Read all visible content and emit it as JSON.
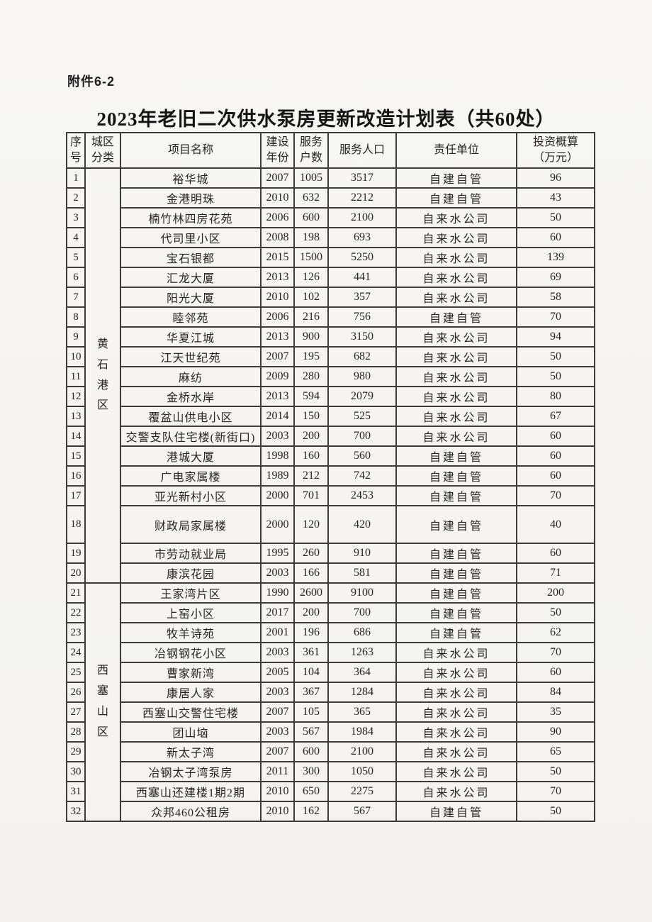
{
  "page": {
    "attachment_label": "附件6-2",
    "title": "2023年老旧二次供水泵房更新改造计划表（共60处）"
  },
  "table": {
    "columns": [
      {
        "key": "no",
        "label": "序\n号"
      },
      {
        "key": "district",
        "label": "城区\n分类"
      },
      {
        "key": "name",
        "label": "项目名称"
      },
      {
        "key": "year",
        "label": "建设\n年份"
      },
      {
        "key": "households",
        "label": "服务\n户数"
      },
      {
        "key": "population",
        "label": "服务人口"
      },
      {
        "key": "unit",
        "label": "责任单位"
      },
      {
        "key": "investment",
        "label": "投资概算\n（万元）"
      }
    ],
    "districts": [
      {
        "label": "黄石港区",
        "from": 1,
        "to": 20
      },
      {
        "label": "西塞山区",
        "from": 21,
        "to": 32
      }
    ],
    "rows": [
      {
        "no": 1,
        "name": "裕华城",
        "year": "2007",
        "households": "1005",
        "population": "3517",
        "unit": "自建自管",
        "investment": "96"
      },
      {
        "no": 2,
        "name": "金港明珠",
        "year": "2010",
        "households": "632",
        "population": "2212",
        "unit": "自建自管",
        "investment": "43"
      },
      {
        "no": 3,
        "name": "楠竹林四房花苑",
        "year": "2006",
        "households": "600",
        "population": "2100",
        "unit": "自来水公司",
        "investment": "50"
      },
      {
        "no": 4,
        "name": "代司里小区",
        "year": "2008",
        "households": "198",
        "population": "693",
        "unit": "自来水公司",
        "investment": "60"
      },
      {
        "no": 5,
        "name": "宝石银都",
        "year": "2015",
        "households": "1500",
        "population": "5250",
        "unit": "自来水公司",
        "investment": "139"
      },
      {
        "no": 6,
        "name": "汇龙大厦",
        "year": "2013",
        "households": "126",
        "population": "441",
        "unit": "自来水公司",
        "investment": "69"
      },
      {
        "no": 7,
        "name": "阳光大厦",
        "year": "2010",
        "households": "102",
        "population": "357",
        "unit": "自来水公司",
        "investment": "58"
      },
      {
        "no": 8,
        "name": "睦邻苑",
        "year": "2006",
        "households": "216",
        "population": "756",
        "unit": "自建自管",
        "investment": "70"
      },
      {
        "no": 9,
        "name": "华夏江城",
        "year": "2013",
        "households": "900",
        "population": "3150",
        "unit": "自来水公司",
        "investment": "94"
      },
      {
        "no": 10,
        "name": "江天世纪苑",
        "year": "2007",
        "households": "195",
        "population": "682",
        "unit": "自来水公司",
        "investment": "50"
      },
      {
        "no": 11,
        "name": "麻纺",
        "year": "2009",
        "households": "280",
        "population": "980",
        "unit": "自来水公司",
        "investment": "50"
      },
      {
        "no": 12,
        "name": "金桥水岸",
        "year": "2013",
        "households": "594",
        "population": "2079",
        "unit": "自来水公司",
        "investment": "80"
      },
      {
        "no": 13,
        "name": "覆盆山供电小区",
        "year": "2014",
        "households": "150",
        "population": "525",
        "unit": "自来水公司",
        "investment": "67"
      },
      {
        "no": 14,
        "name": "交警支队住宅楼(新街口)",
        "year": "2003",
        "households": "200",
        "population": "700",
        "unit": "自来水公司",
        "investment": "60"
      },
      {
        "no": 15,
        "name": "港城大厦",
        "year": "1998",
        "households": "160",
        "population": "560",
        "unit": "自建自管",
        "investment": "60"
      },
      {
        "no": 16,
        "name": "广电家属楼",
        "year": "1989",
        "households": "212",
        "population": "742",
        "unit": "自建自管",
        "investment": "60"
      },
      {
        "no": 17,
        "name": "亚光新村小区",
        "year": "2000",
        "households": "701",
        "population": "2453",
        "unit": "自建自管",
        "investment": "70"
      },
      {
        "no": 18,
        "name": "财政局家属楼",
        "year": "2000",
        "households": "120",
        "population": "420",
        "unit": "自建自管",
        "investment": "40"
      },
      {
        "no": 19,
        "name": "市劳动就业局",
        "year": "1995",
        "households": "260",
        "population": "910",
        "unit": "自建自管",
        "investment": "60"
      },
      {
        "no": 20,
        "name": "康滨花园",
        "year": "2003",
        "households": "166",
        "population": "581",
        "unit": "自建自管",
        "investment": "71"
      },
      {
        "no": 21,
        "name": "王家湾片区",
        "year": "1990",
        "households": "2600",
        "population": "9100",
        "unit": "自建自管",
        "investment": "200"
      },
      {
        "no": 22,
        "name": "上窑小区",
        "year": "2017",
        "households": "200",
        "population": "700",
        "unit": "自建自管",
        "investment": "50"
      },
      {
        "no": 23,
        "name": "牧羊诗苑",
        "year": "2001",
        "households": "196",
        "population": "686",
        "unit": "自建自管",
        "investment": "62"
      },
      {
        "no": 24,
        "name": "冶钢钢花小区",
        "year": "2003",
        "households": "361",
        "population": "1263",
        "unit": "自来水公司",
        "investment": "70"
      },
      {
        "no": 25,
        "name": "曹家新湾",
        "year": "2005",
        "households": "104",
        "population": "364",
        "unit": "自来水公司",
        "investment": "60"
      },
      {
        "no": 26,
        "name": "康居人家",
        "year": "2003",
        "households": "367",
        "population": "1284",
        "unit": "自来水公司",
        "investment": "84"
      },
      {
        "no": 27,
        "name": "西塞山交警住宅楼",
        "year": "2007",
        "households": "105",
        "population": "365",
        "unit": "自来水公司",
        "investment": "35"
      },
      {
        "no": 28,
        "name": "团山垴",
        "year": "2003",
        "households": "567",
        "population": "1984",
        "unit": "自来水公司",
        "investment": "90"
      },
      {
        "no": 29,
        "name": "新太子湾",
        "year": "2007",
        "households": "600",
        "population": "2100",
        "unit": "自来水公司",
        "investment": "65"
      },
      {
        "no": 30,
        "name": "冶钢太子湾泵房",
        "year": "2011",
        "households": "300",
        "population": "1050",
        "unit": "自来水公司",
        "investment": "50"
      },
      {
        "no": 31,
        "name": "西塞山还建楼1期2期",
        "year": "2010",
        "households": "650",
        "population": "2275",
        "unit": "自来水公司",
        "investment": "70"
      },
      {
        "no": 32,
        "name": "众邦460公租房",
        "year": "2010",
        "households": "162",
        "population": "567",
        "unit": "自建自管",
        "investment": "50"
      }
    ]
  }
}
